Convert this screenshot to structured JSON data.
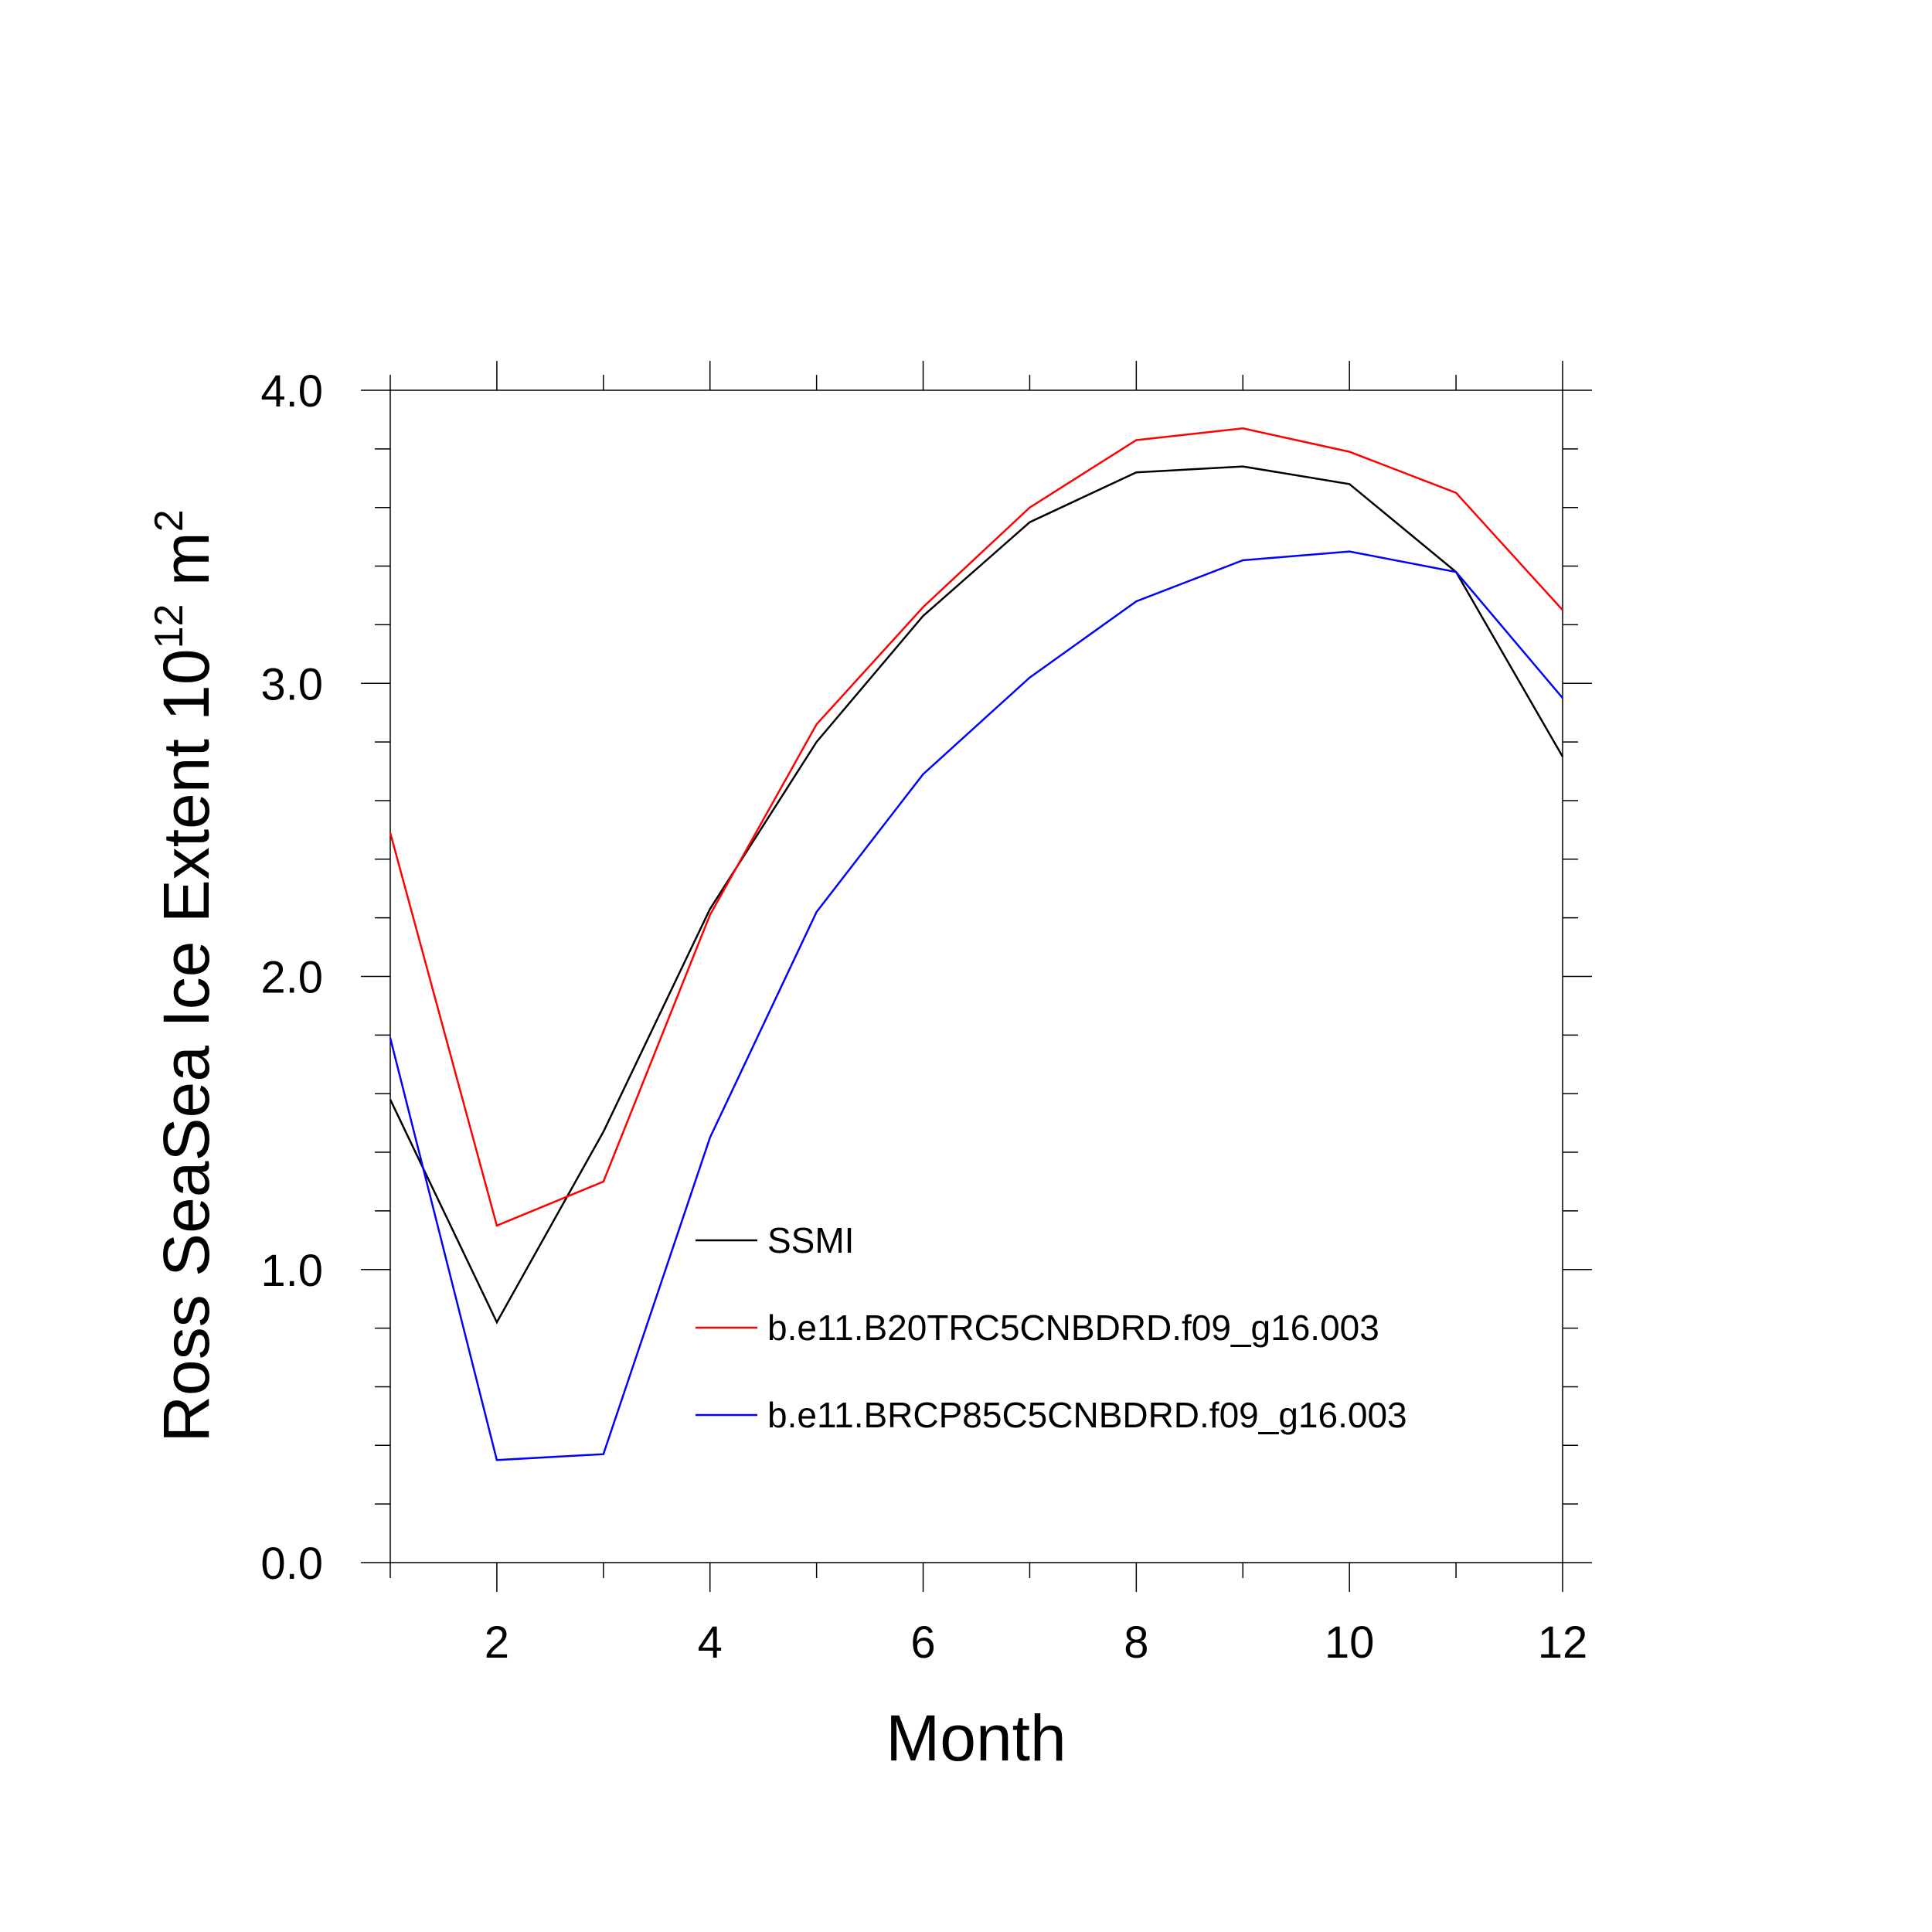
{
  "chart_data": {
    "type": "line",
    "title": "",
    "xlabel": "Month",
    "ylabel": {
      "main": "Ross SeaSea Ice Extent 10",
      "superscript1": "12",
      "unit": " m",
      "superscript2": "2"
    },
    "xlim": [
      1,
      12
    ],
    "ylim": [
      0,
      4
    ],
    "x": [
      1,
      2,
      3,
      4,
      5,
      6,
      7,
      8,
      9,
      10,
      11,
      12
    ],
    "x_ticks": [
      2,
      4,
      6,
      8,
      10,
      12
    ],
    "x_tick_labels": [
      "2",
      "4",
      "6",
      "8",
      "10",
      "12"
    ],
    "y_ticks": [
      0,
      1,
      2,
      3,
      4
    ],
    "y_tick_labels": [
      "0.0",
      "1.0",
      "2.0",
      "3.0",
      "4.0"
    ],
    "grid": false,
    "legend_position": "center-right",
    "series": [
      {
        "name": "SSMI",
        "color": "#000000",
        "values": [
          1.58,
          0.82,
          1.47,
          2.23,
          2.8,
          3.23,
          3.55,
          3.72,
          3.74,
          3.68,
          3.38,
          2.75
        ]
      },
      {
        "name": "b.e11.B20TRC5CNBDRD.f09_g16.003",
        "color": "#ff0000",
        "values": [
          2.49,
          1.15,
          1.3,
          2.21,
          2.86,
          3.26,
          3.6,
          3.83,
          3.87,
          3.79,
          3.65,
          3.25
        ]
      },
      {
        "name": "b.e11.BRCP85C5CNBDRD.f09_g16.003",
        "color": "#0000ff",
        "values": [
          1.79,
          0.35,
          0.37,
          1.45,
          2.22,
          2.69,
          3.02,
          3.28,
          3.42,
          3.45,
          3.38,
          2.95
        ]
      }
    ]
  }
}
